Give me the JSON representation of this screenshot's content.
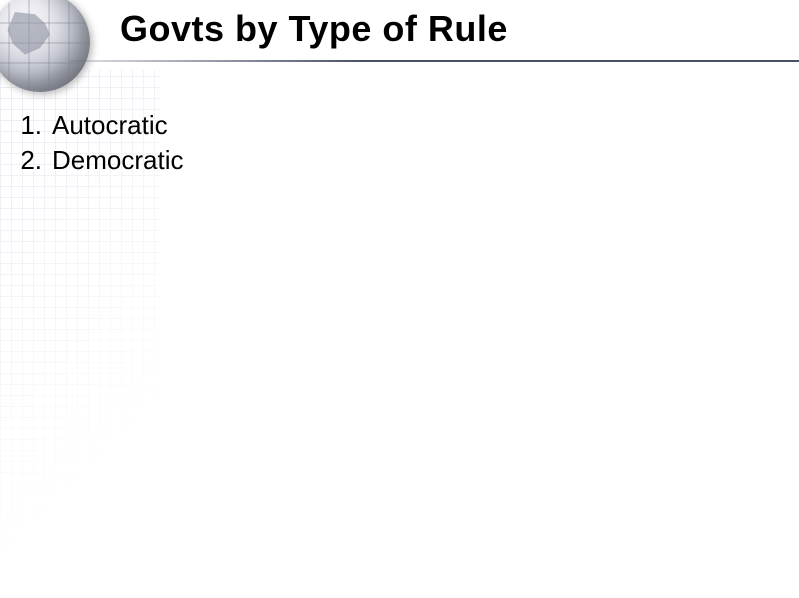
{
  "slide": {
    "title": "Govts by Type of Rule",
    "title_font_size": 36,
    "title_color": "#000000",
    "underline_color": "#4a5268",
    "background_color": "#ffffff",
    "grid_color": "#b8c4d8",
    "globe_colors": {
      "light": "#f8f8fa",
      "mid": "#c5c8d2",
      "dark": "#6f7380"
    },
    "list_items": [
      {
        "number": "1.",
        "text": "Autocratic"
      },
      {
        "number": "2.",
        "text": "Democratic"
      }
    ],
    "list_font_size": 26,
    "list_color": "#000000"
  }
}
